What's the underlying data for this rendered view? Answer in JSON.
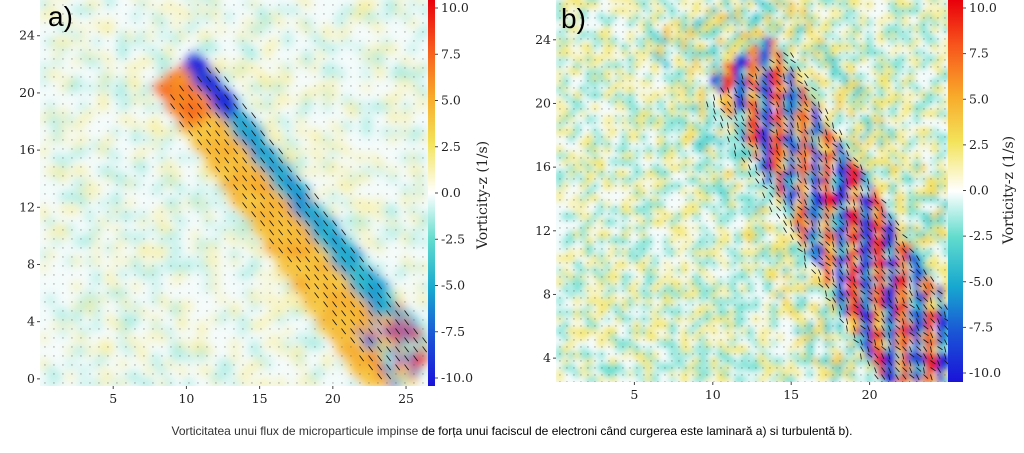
{
  "chart_data": [
    {
      "type": "heatmap",
      "panel_label": "a)",
      "x_ticks": [
        5,
        10,
        15,
        20,
        25
      ],
      "y_ticks": [
        0,
        4,
        8,
        12,
        16,
        20,
        24
      ],
      "xlim": [
        0,
        26.5
      ],
      "ylim": [
        -0.5,
        26.5
      ],
      "colorbar": {
        "label": "Vorticity-z (1/s)",
        "ticks": [
          "10.0",
          "7.5",
          "5.0",
          "2.5",
          "0.0",
          "-2.5",
          "-5.0",
          "-7.5",
          "-10.0"
        ],
        "range": [
          -10,
          10
        ]
      },
      "pattern": "laminar",
      "jet": {
        "start": [
          10,
          21
        ],
        "end": [
          25,
          1
        ]
      }
    },
    {
      "type": "heatmap",
      "panel_label": "b)",
      "x_ticks": [
        5,
        10,
        15,
        20
      ],
      "y_ticks": [
        4,
        8,
        12,
        16,
        20,
        24
      ],
      "xlim": [
        0,
        25
      ],
      "ylim": [
        2.5,
        26.5
      ],
      "colorbar": {
        "label": "Vorticity-z (1/s)",
        "ticks": [
          "10.0",
          "7.5",
          "5.0",
          "2.5",
          "0.0",
          "-2.5",
          "-5.0",
          "-7.5",
          "-10.0"
        ],
        "range": [
          -10,
          10
        ]
      },
      "pattern": "turbulent",
      "jet": {
        "start": [
          12,
          22
        ],
        "end": [
          24,
          3
        ]
      }
    }
  ],
  "caption_part1": "Vorticitatea unui flux de microparticule impinse ",
  "caption_part2": "de forța unui faciscul de electroni când curgerea este laminară a) si turbulentă b).",
  "colors": {
    "caption_dark": "#000000",
    "caption_light": "#333333"
  }
}
